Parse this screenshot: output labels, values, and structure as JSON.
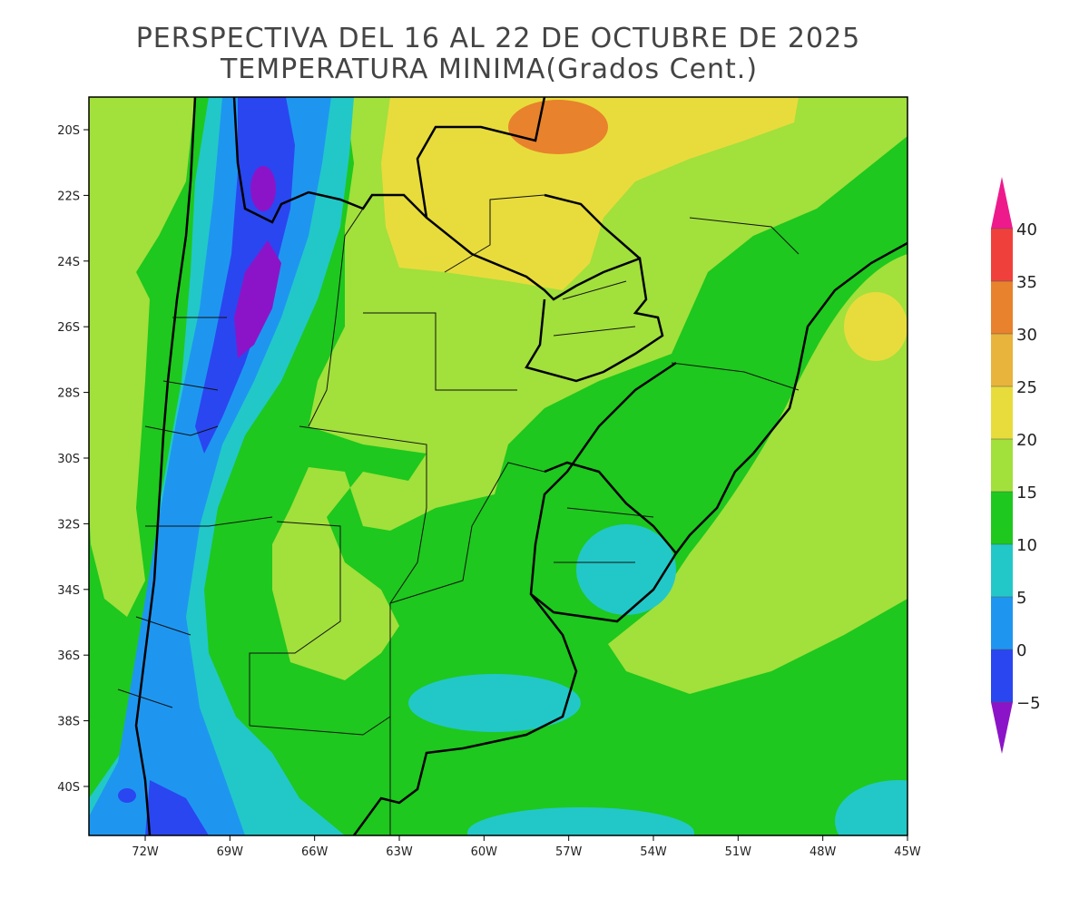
{
  "title": {
    "line1": "PERSPECTIVA DEL 16 AL 22 DE OCTUBRE DE 2025",
    "line2": "TEMPERATURA MINIMA(Grados Cent.)"
  },
  "map": {
    "x_labels": [
      "72W",
      "69W",
      "66W",
      "63W",
      "60W",
      "57W",
      "54W",
      "51W",
      "48W",
      "45W"
    ],
    "y_labels": [
      "20S",
      "22S",
      "24S",
      "26S",
      "28S",
      "30S",
      "32S",
      "34S",
      "36S",
      "38S",
      "40S"
    ]
  },
  "colorbar": {
    "labels": [
      "40",
      "35",
      "30",
      "25",
      "20",
      "15",
      "10",
      "5",
      "0",
      "−5"
    ],
    "top_color": "#ee1a8c",
    "colors": [
      "#f0403c",
      "#e8822c",
      "#e8b43c",
      "#e8dc3c",
      "#a2e03c",
      "#1ec81e",
      "#22c8c8",
      "#1e96f0",
      "#2a46f0"
    ],
    "bottom_color": "#8c14c8"
  }
}
